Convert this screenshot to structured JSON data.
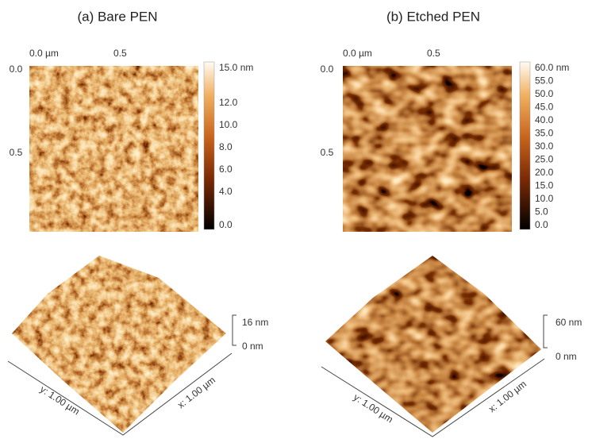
{
  "panels": [
    {
      "title": "(a) Bare PEN",
      "x_axis": [
        "0.0 µm",
        "0.5"
      ],
      "y_axis": [
        "0.0",
        "0.5"
      ],
      "colorbar": [
        "15.0 nm",
        "12.0",
        "10.0",
        "8.0",
        "6.0",
        "4.0",
        "0.0"
      ],
      "height_scale": [
        "16 nm",
        "0 nm"
      ],
      "axis_3d": [
        "y: 1.00 µm",
        "x: 1.00 µm"
      ]
    },
    {
      "title": "(b) Etched PEN",
      "x_axis": [
        "0.0 µm",
        "0.5"
      ],
      "y_axis": [
        "0.0",
        "0.5"
      ],
      "colorbar": [
        "60.0 nm",
        "55.0",
        "50.0",
        "45.0",
        "40.0",
        "35.0",
        "30.0",
        "25.0",
        "20.0",
        "15.0",
        "10.0",
        "5.0",
        "0.0"
      ],
      "height_scale": [
        "60 nm",
        "0 nm"
      ],
      "axis_3d": [
        "y: 1.00 µm",
        "x: 1.00 µm"
      ]
    }
  ]
}
